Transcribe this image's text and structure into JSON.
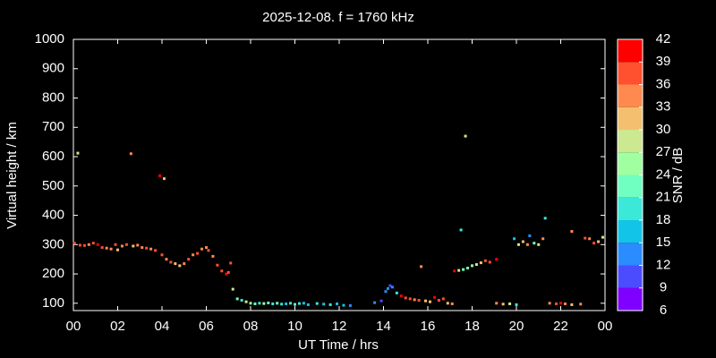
{
  "chart_data": {
    "type": "scatter",
    "title": "2025-12-08. f = 1760 kHz",
    "xlabel": "UT Time / hrs",
    "ylabel": "Virtual height / km",
    "xlim": [
      0,
      24
    ],
    "xticks": [
      {
        "value": 0,
        "label": "00"
      },
      {
        "value": 2,
        "label": "02"
      },
      {
        "value": 4,
        "label": "04"
      },
      {
        "value": 6,
        "label": "06"
      },
      {
        "value": 8,
        "label": "08"
      },
      10,
      12,
      14,
      16,
      18,
      20,
      22,
      {
        "value": 24,
        "label": "00"
      }
    ],
    "ylim": [
      75,
      1000
    ],
    "yticks": [
      100,
      200,
      300,
      400,
      500,
      600,
      700,
      800,
      900,
      1000
    ],
    "colorbar": {
      "label": "SNR / dB",
      "lim": [
        6,
        42
      ],
      "ticks": [
        6,
        9,
        12,
        15,
        18,
        21,
        24,
        27,
        30,
        33,
        36,
        39,
        42
      ],
      "colors": [
        "#8000ff",
        "#4c4cff",
        "#2a8cff",
        "#12c4e8",
        "#3ce8d8",
        "#70ffc0",
        "#a0ffa0",
        "#cce890",
        "#f4c070",
        "#ff8a50",
        "#ff5030",
        "#ff0000"
      ]
    },
    "x": [
      0.05,
      0.2,
      0.3,
      0.5,
      0.7,
      0.9,
      1.1,
      1.3,
      1.5,
      1.7,
      1.9,
      2.0,
      2.2,
      2.4,
      2.6,
      2.7,
      2.9,
      3.1,
      3.3,
      3.5,
      3.7,
      3.9,
      4.1,
      4.0,
      4.2,
      4.4,
      4.6,
      4.8,
      5.0,
      5.2,
      5.4,
      5.6,
      5.8,
      6.0,
      6.1,
      6.3,
      6.5,
      6.7,
      6.9,
      7.0,
      7.1,
      7.2,
      7.4,
      7.6,
      7.8,
      8.0,
      8.2,
      8.4,
      8.6,
      8.8,
      9.0,
      9.2,
      9.4,
      9.6,
      9.8,
      10.0,
      10.2,
      10.4,
      10.6,
      11.0,
      11.3,
      11.6,
      11.9,
      12.2,
      12.5,
      13.6,
      13.9,
      14.1,
      14.2,
      14.3,
      14.4,
      14.6,
      14.8,
      15.0,
      15.2,
      15.4,
      15.6,
      15.7,
      15.9,
      16.1,
      16.3,
      16.5,
      16.7,
      16.9,
      17.1,
      17.2,
      17.4,
      17.5,
      17.6,
      17.7,
      17.8,
      18.0,
      18.2,
      18.4,
      18.6,
      18.8,
      19.1,
      19.1,
      19.4,
      19.7,
      19.9,
      20.0,
      20.1,
      20.3,
      20.5,
      20.6,
      20.8,
      21.0,
      21.2,
      21.3,
      21.5,
      21.8,
      22.0,
      22.2,
      22.5,
      22.5,
      22.9,
      23.1,
      23.3,
      23.5,
      23.7,
      23.9
    ],
    "y": [
      305,
      612,
      298,
      297,
      300,
      305,
      300,
      290,
      288,
      285,
      300,
      282,
      295,
      300,
      610,
      295,
      298,
      290,
      288,
      285,
      280,
      535,
      525,
      265,
      250,
      240,
      235,
      228,
      235,
      250,
      265,
      270,
      285,
      290,
      280,
      260,
      230,
      210,
      200,
      205,
      237,
      148,
      115,
      110,
      105,
      100,
      98,
      100,
      99,
      101,
      98,
      100,
      97,
      98,
      100,
      96,
      99,
      100,
      95,
      99,
      97,
      95,
      98,
      93,
      92,
      102,
      108,
      140,
      150,
      160,
      155,
      135,
      125,
      118,
      115,
      112,
      110,
      225,
      108,
      105,
      120,
      110,
      115,
      100,
      98,
      210,
      212,
      350,
      215,
      670,
      220,
      228,
      232,
      238,
      245,
      240,
      250,
      100,
      97,
      98,
      320,
      95,
      300,
      310,
      300,
      330,
      305,
      300,
      320,
      390,
      100,
      98,
      100,
      98,
      345,
      95,
      97,
      322,
      320,
      305,
      310,
      325
    ],
    "snr": [
      36,
      27,
      36,
      36,
      33,
      36,
      39,
      36,
      33,
      33,
      36,
      30,
      33,
      36,
      33,
      30,
      33,
      33,
      36,
      33,
      36,
      39,
      30,
      36,
      33,
      36,
      30,
      30,
      33,
      36,
      33,
      36,
      33,
      33,
      36,
      33,
      36,
      36,
      39,
      36,
      36,
      27,
      21,
      18,
      27,
      24,
      21,
      18,
      24,
      21,
      18,
      21,
      18,
      15,
      18,
      21,
      18,
      15,
      15,
      18,
      15,
      18,
      15,
      15,
      12,
      12,
      9,
      12,
      12,
      9,
      12,
      18,
      39,
      36,
      36,
      33,
      36,
      33,
      30,
      30,
      39,
      36,
      36,
      30,
      33,
      39,
      27,
      18,
      21,
      27,
      21,
      24,
      27,
      30,
      36,
      36,
      39,
      33,
      30,
      27,
      15,
      18,
      27,
      30,
      33,
      12,
      21,
      27,
      33,
      18,
      33,
      36,
      39,
      33,
      33,
      30,
      33,
      36,
      33,
      36,
      30,
      27
    ]
  }
}
